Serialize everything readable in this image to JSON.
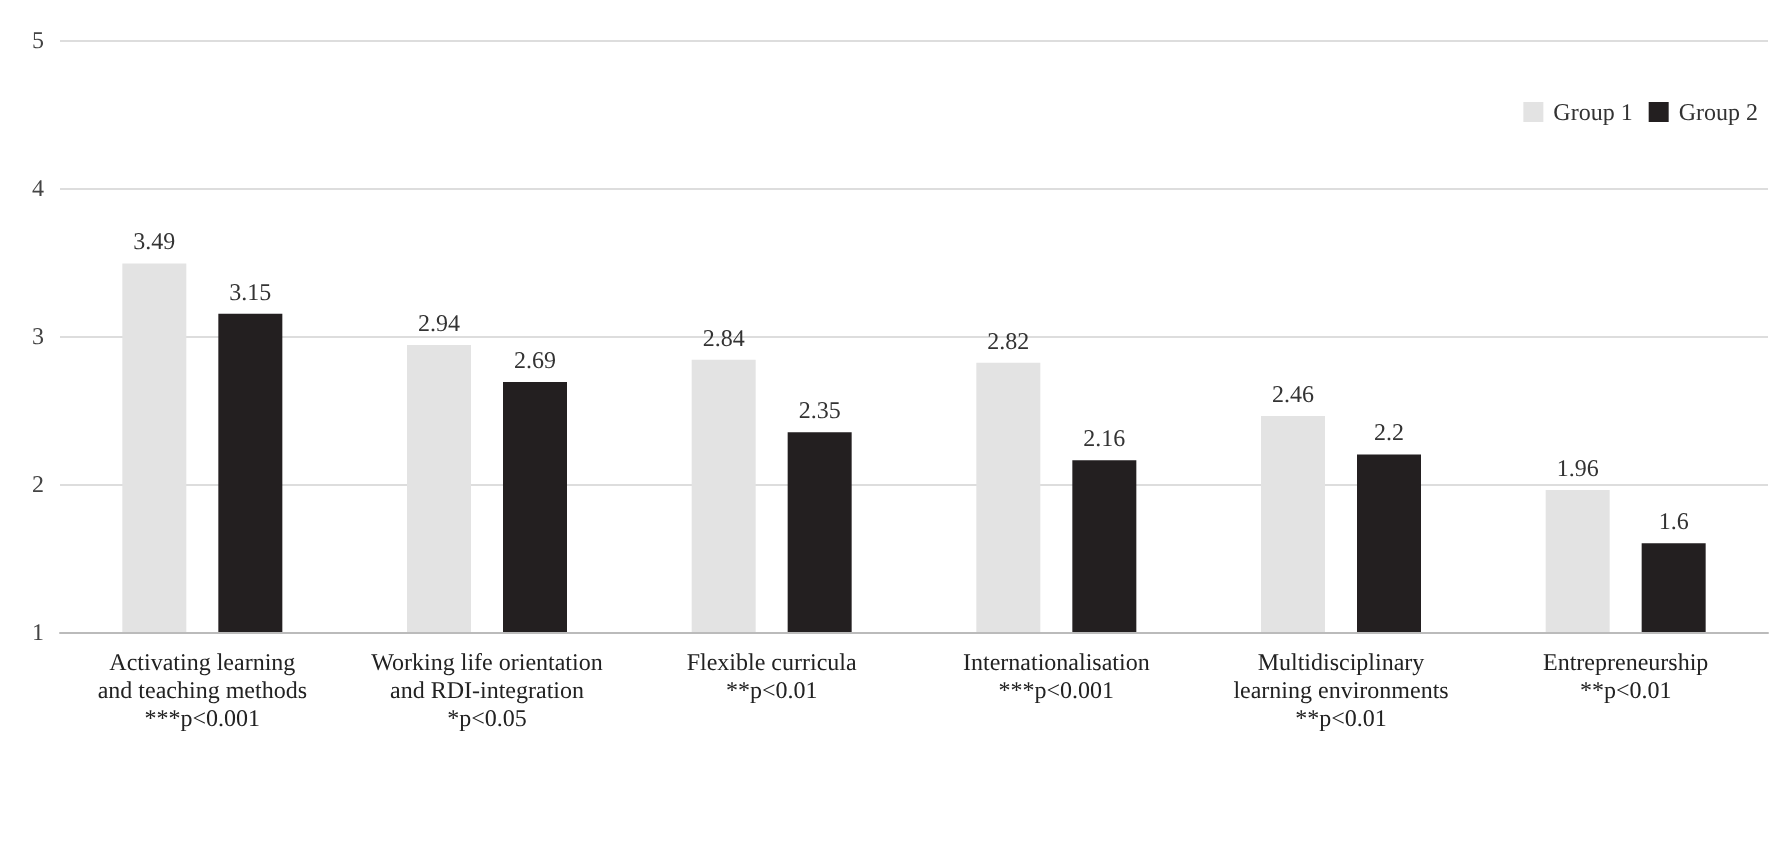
{
  "chart_data": {
    "type": "bar",
    "categories": [
      "Activating learning\nand teaching methods\n***p<0.001",
      "Working life orientation\nand RDI-integration\n*p<0.05",
      "Flexible curricula\n**p<0.01",
      "Internationalisation\n***p<0.001",
      "Multidisciplinary\nlearning environments\n**p<0.01",
      "Entrepreneurship\n**p<0.01"
    ],
    "series": [
      {
        "name": "Group 1",
        "color": "#e3e3e3",
        "values": [
          3.49,
          2.94,
          2.84,
          2.82,
          2.46,
          1.96
        ]
      },
      {
        "name": "Group 2",
        "color": "#231f20",
        "values": [
          3.15,
          2.69,
          2.35,
          2.16,
          2.2,
          1.6
        ]
      }
    ],
    "ylim": [
      1,
      5
    ],
    "yticks": [
      1,
      2,
      3,
      4,
      5
    ],
    "grid": "y",
    "legend": "top right",
    "data_labels": true
  }
}
